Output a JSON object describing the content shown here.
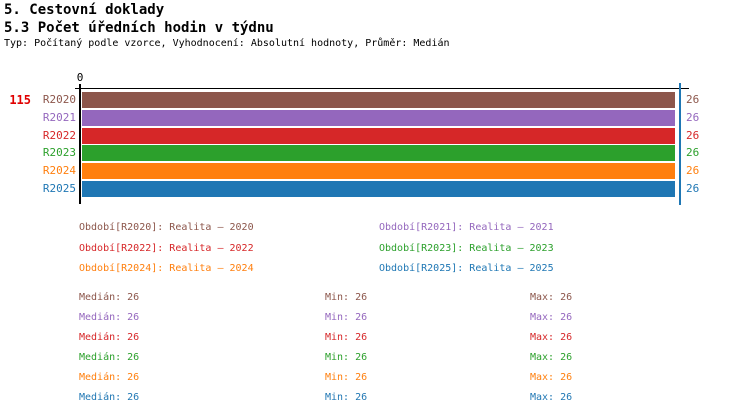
{
  "header": {
    "title_line1": "5. Cestovní doklady",
    "title_line2": "5.3 Počet úředních hodin v týdnu",
    "subtitle": "Typ: Počítaný podle vzorce, Vyhodnocení: Absolutní hodnoty, Průměr: Medián"
  },
  "chart_data": {
    "type": "bar",
    "orientation": "horizontal",
    "title": "5.3 Počet úředních hodin v týdnu",
    "categories": [
      "R2020",
      "R2021",
      "R2022",
      "R2023",
      "R2024",
      "R2025"
    ],
    "values": [
      26,
      26,
      26,
      26,
      26,
      26
    ],
    "bar_value_labels": [
      "26",
      "26",
      "26",
      "26",
      "26",
      "26"
    ],
    "colors": [
      "#8C564B",
      "#9467BD",
      "#D62728",
      "#2CA02C",
      "#FF7F0E",
      "#1F77B4"
    ],
    "series_names": [
      "Realita – 2020",
      "Realita – 2021",
      "Realita – 2022",
      "Realita – 2023",
      "Realita – 2024",
      "Realita – 2025"
    ],
    "xlim": [
      0,
      26
    ],
    "x_ticks_shown": [
      "0"
    ],
    "grid": false,
    "legend_position": "below",
    "left_annotation": "115",
    "max_reference_line": {
      "value": 26,
      "color": "#1F77B4"
    },
    "stats": [
      {
        "series": "R2020",
        "median": 26,
        "min": 26,
        "max": 26
      },
      {
        "series": "R2021",
        "median": 26,
        "min": 26,
        "max": 26
      },
      {
        "series": "R2022",
        "median": 26,
        "min": 26,
        "max": 26
      },
      {
        "series": "R2023",
        "median": 26,
        "min": 26,
        "max": 26
      },
      {
        "series": "R2024",
        "median": 26,
        "min": 26,
        "max": 26
      },
      {
        "series": "R2025",
        "median": 26,
        "min": 26,
        "max": 26
      }
    ]
  },
  "legend": {
    "items": [
      {
        "label": "Období[R2020]: Realita – 2020",
        "color": "#8C564B"
      },
      {
        "label": "Období[R2021]: Realita – 2021",
        "color": "#9467BD"
      },
      {
        "label": "Období[R2022]: Realita – 2022",
        "color": "#D62728"
      },
      {
        "label": "Období[R2023]: Realita – 2023",
        "color": "#2CA02C"
      },
      {
        "label": "Období[R2024]: Realita – 2024",
        "color": "#FF7F0E"
      },
      {
        "label": "Období[R2025]: Realita – 2025",
        "color": "#1F77B4"
      }
    ]
  },
  "stats_panel": {
    "rows": [
      {
        "median": "Medián: 26",
        "min": "Min: 26",
        "max": "Max: 26",
        "color": "#8C564B"
      },
      {
        "median": "Medián: 26",
        "min": "Min: 26",
        "max": "Max: 26",
        "color": "#9467BD"
      },
      {
        "median": "Medián: 26",
        "min": "Min: 26",
        "max": "Max: 26",
        "color": "#D62728"
      },
      {
        "median": "Medián: 26",
        "min": "Min: 26",
        "max": "Max: 26",
        "color": "#2CA02C"
      },
      {
        "median": "Medián: 26",
        "min": "Min: 26",
        "max": "Max: 26",
        "color": "#FF7F0E"
      },
      {
        "median": "Medián: 26",
        "min": "Min: 26",
        "max": "Max: 26",
        "color": "#1F77B4"
      }
    ]
  }
}
